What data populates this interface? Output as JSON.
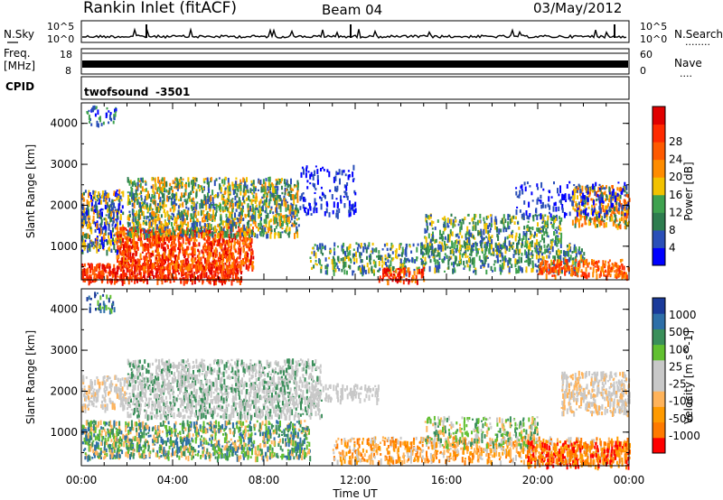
{
  "header": {
    "station": "Rankin Inlet (fitACF)",
    "beam": "Beam 04",
    "date": "03/May/2012"
  },
  "noise_panel": {
    "left_label": "N.Sky",
    "right_label": "N.Search",
    "left_ticks": [
      "10^5",
      "10^0"
    ],
    "right_ticks": [
      "10^5",
      "10^0"
    ],
    "right_dots": "........"
  },
  "freq_panel": {
    "left_label_1": "Freq.",
    "left_label_2": "[MHz]",
    "right_label": "Nave",
    "left_ticks": [
      "18",
      "8"
    ],
    "right_ticks": [
      "60",
      "0"
    ],
    "right_dots": "...."
  },
  "cpid_panel": {
    "label": "CPID",
    "program": "twofsound",
    "id": "-3501"
  },
  "colors": {
    "power_scale": [
      "#0000ff",
      "#2a4fb8",
      "#2e7d4f",
      "#3fa24f",
      "#f2c200",
      "#ff8c00",
      "#ff5a00",
      "#ff2a00",
      "#e00000"
    ],
    "velocity_scale": [
      "#ff0000",
      "#ff7a00",
      "#ff9a00",
      "#ffb35a",
      "#c8c8c8",
      "#c8c8c8",
      "#61c030",
      "#3a8f5a",
      "#2e6fa8",
      "#1a3a9a"
    ],
    "grey": "#c8c8c8"
  },
  "chart_data": [
    {
      "type": "heatmap",
      "title": "Power",
      "ylabel": "Slant Range [km]",
      "ylim": [
        180,
        4500
      ],
      "xlim": [
        "00:00",
        "24:00"
      ],
      "y_ticks": [
        "1000",
        "2000",
        "3000",
        "4000"
      ],
      "colorbar_label": "Power [dB]",
      "colorbar_ticks": [
        "4",
        "8",
        "12",
        "16",
        "20",
        "24",
        "28"
      ]
    },
    {
      "type": "heatmap",
      "title": "Velocity",
      "xlabel": "Time UT",
      "ylabel": "Slant Range [km]",
      "ylim": [
        180,
        4500
      ],
      "xlim": [
        "00:00",
        "24:00"
      ],
      "x_ticks": [
        "00:00",
        "04:00",
        "08:00",
        "12:00",
        "16:00",
        "20:00",
        "00:00"
      ],
      "y_ticks": [
        "1000",
        "2000",
        "3000",
        "4000"
      ],
      "colorbar_label": "Velocity [m s^-1]",
      "colorbar_ticks": [
        "1000",
        "500",
        "100",
        "25",
        "-25",
        "-100",
        "-500",
        "-1000"
      ]
    }
  ]
}
